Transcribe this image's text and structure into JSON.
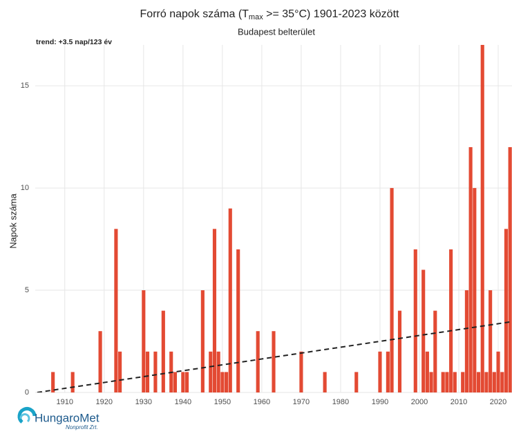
{
  "chart_data": {
    "type": "bar",
    "title_parts": [
      "Forró napok száma (T",
      "max",
      " >= 35°C) 1901-2023 között"
    ],
    "subtitle": "Budapest belterület",
    "annotation": "trend: +3.5 nap/123 év",
    "y_label": "Napok száma",
    "color": "#e34a33",
    "x": [
      1907,
      1912,
      1919,
      1923,
      1924,
      1930,
      1931,
      1933,
      1935,
      1937,
      1938,
      1940,
      1941,
      1945,
      1947,
      1948,
      1949,
      1950,
      1951,
      1952,
      1954,
      1959,
      1963,
      1970,
      1976,
      1984,
      1990,
      1992,
      1993,
      1995,
      1999,
      2001,
      2002,
      2003,
      2004,
      2006,
      2007,
      2008,
      2009,
      2011,
      2012,
      2013,
      2014,
      2015,
      2016,
      2017,
      2018,
      2019,
      2020,
      2021,
      2022,
      2023
    ],
    "values": [
      1,
      1,
      3,
      8,
      2,
      5,
      2,
      2,
      4,
      2,
      1,
      1,
      1,
      5,
      2,
      8,
      2,
      1,
      1,
      9,
      7,
      3,
      3,
      2,
      1,
      1,
      2,
      2,
      10,
      4,
      7,
      6,
      2,
      1,
      4,
      1,
      1,
      7,
      1,
      1,
      5,
      12,
      10,
      1,
      17,
      1,
      5,
      1,
      2,
      1,
      8,
      12
    ],
    "trend": {
      "x": [
        1903,
        2023
      ],
      "values": [
        0,
        3.45
      ],
      "color": "#222222"
    },
    "xlim": [
      1902.5,
      2023.5
    ],
    "ylim": [
      0,
      17
    ],
    "xticks": [
      1910,
      1920,
      1930,
      1940,
      1950,
      1960,
      1970,
      1980,
      1990,
      2000,
      2010,
      2020
    ],
    "yticks": [
      0,
      5,
      10,
      15
    ],
    "grid": true
  },
  "logo": {
    "name": "HungaroMet",
    "sub": "Nonprofit Zrt."
  }
}
